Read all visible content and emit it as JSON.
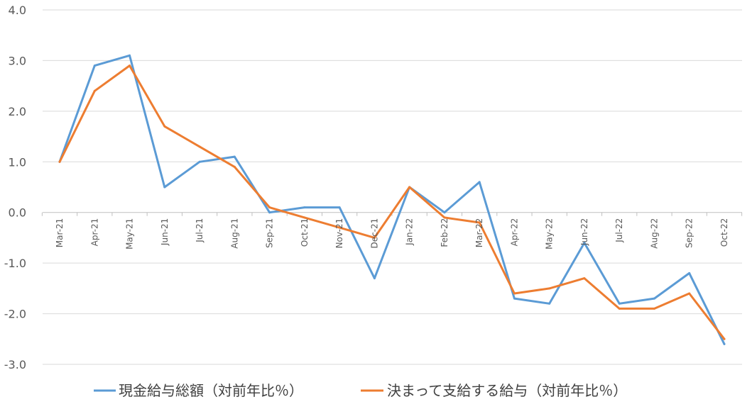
{
  "chart_data": {
    "type": "line",
    "categories": [
      "Mar-21",
      "Apr-21",
      "May-21",
      "Jun-21",
      "Jul-21",
      "Aug-21",
      "Sep-21",
      "Oct-21",
      "Nov-21",
      "Dec-21",
      "Jan-22",
      "Feb-22",
      "Mar-22",
      "Apr-22",
      "May-22",
      "Jun-22",
      "Jul-22",
      "Aug-22",
      "Sep-22",
      "Oct-22"
    ],
    "ylim": [
      -3.0,
      4.0
    ],
    "yticks": [
      "4.0",
      "3.0",
      "2.0",
      "1.0",
      "0.0",
      "-1.0",
      "-2.0",
      "-3.0"
    ],
    "grid": true,
    "legend": "bottom",
    "series": [
      {
        "name": "現金給与総額（対前年比％）",
        "color": "#5b9bd5",
        "values": [
          1.0,
          2.9,
          3.1,
          0.5,
          1.0,
          1.1,
          0.0,
          0.1,
          0.1,
          -1.3,
          0.5,
          0.0,
          0.6,
          -1.7,
          -1.8,
          -0.6,
          -1.8,
          -1.7,
          -1.2,
          -2.6
        ]
      },
      {
        "name": "決まって支給する給与（対前年比％）",
        "color": "#ed7d31",
        "values": [
          1.0,
          2.4,
          2.9,
          1.7,
          1.3,
          0.9,
          0.1,
          -0.1,
          -0.3,
          -0.5,
          0.5,
          -0.1,
          -0.2,
          -1.6,
          -1.5,
          -1.3,
          -1.9,
          -1.9,
          -1.6,
          -2.5
        ]
      }
    ]
  }
}
